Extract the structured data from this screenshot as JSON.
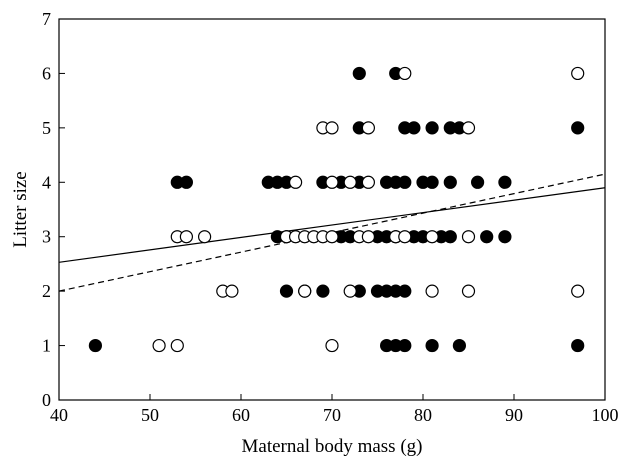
{
  "chart_data": {
    "type": "scatter",
    "xlabel": "Maternal body mass (g)",
    "ylabel": "Litter size",
    "xlim": [
      40,
      100
    ],
    "ylim": [
      0,
      7
    ],
    "x_ticks": [
      40,
      50,
      60,
      70,
      80,
      90,
      100
    ],
    "y_ticks": [
      0,
      1,
      2,
      3,
      4,
      5,
      6,
      7
    ],
    "grid": false,
    "series": [
      {
        "marker": "filled-circle",
        "color": "#000000",
        "points": [
          [
            44,
            1
          ],
          [
            53,
            4
          ],
          [
            54,
            4
          ],
          [
            63,
            4
          ],
          [
            64,
            4
          ],
          [
            65,
            4
          ],
          [
            69,
            4
          ],
          [
            71,
            4
          ],
          [
            73,
            4
          ],
          [
            76,
            4
          ],
          [
            77,
            4
          ],
          [
            78,
            4
          ],
          [
            80,
            4
          ],
          [
            81,
            4
          ],
          [
            83,
            4
          ],
          [
            86,
            4
          ],
          [
            89,
            4
          ],
          [
            64,
            3
          ],
          [
            65,
            3
          ],
          [
            71,
            3
          ],
          [
            72,
            3
          ],
          [
            75,
            3
          ],
          [
            76,
            3
          ],
          [
            77,
            3
          ],
          [
            79,
            3
          ],
          [
            80,
            3
          ],
          [
            82,
            3
          ],
          [
            83,
            3
          ],
          [
            87,
            3
          ],
          [
            89,
            3
          ],
          [
            65,
            2
          ],
          [
            67,
            2
          ],
          [
            69,
            2
          ],
          [
            73,
            2
          ],
          [
            75,
            2
          ],
          [
            76,
            2
          ],
          [
            77,
            2
          ],
          [
            78,
            2
          ],
          [
            73,
            5
          ],
          [
            78,
            5
          ],
          [
            79,
            5
          ],
          [
            81,
            5
          ],
          [
            83,
            5
          ],
          [
            84,
            5
          ],
          [
            97,
            5
          ],
          [
            73,
            6
          ],
          [
            77,
            6
          ],
          [
            76,
            1
          ],
          [
            77,
            1
          ],
          [
            78,
            1
          ],
          [
            81,
            1
          ],
          [
            84,
            1
          ],
          [
            97,
            1
          ]
        ]
      },
      {
        "marker": "open-circle",
        "color": "#000000",
        "points": [
          [
            51,
            1
          ],
          [
            53,
            1
          ],
          [
            70,
            1
          ],
          [
            58,
            2
          ],
          [
            59,
            2
          ],
          [
            67,
            2
          ],
          [
            72,
            2
          ],
          [
            81,
            2
          ],
          [
            85,
            2
          ],
          [
            97,
            2
          ],
          [
            53,
            3
          ],
          [
            54,
            3
          ],
          [
            56,
            3
          ],
          [
            65,
            3
          ],
          [
            66,
            3
          ],
          [
            67,
            3
          ],
          [
            68,
            3
          ],
          [
            69,
            3
          ],
          [
            70,
            3
          ],
          [
            73,
            3
          ],
          [
            74,
            3
          ],
          [
            77,
            3
          ],
          [
            78,
            3
          ],
          [
            81,
            3
          ],
          [
            85,
            3
          ],
          [
            66,
            4
          ],
          [
            70,
            4
          ],
          [
            72,
            4
          ],
          [
            74,
            4
          ],
          [
            69,
            5
          ],
          [
            70,
            5
          ],
          [
            74,
            5
          ],
          [
            85,
            5
          ],
          [
            78,
            6
          ],
          [
            97,
            6
          ]
        ]
      }
    ],
    "fit_lines": [
      {
        "style": "solid",
        "x": [
          40,
          100
        ],
        "y": [
          2.53,
          3.9
        ]
      },
      {
        "style": "dashed",
        "x": [
          40,
          100
        ],
        "y": [
          2.0,
          4.15
        ]
      }
    ]
  }
}
